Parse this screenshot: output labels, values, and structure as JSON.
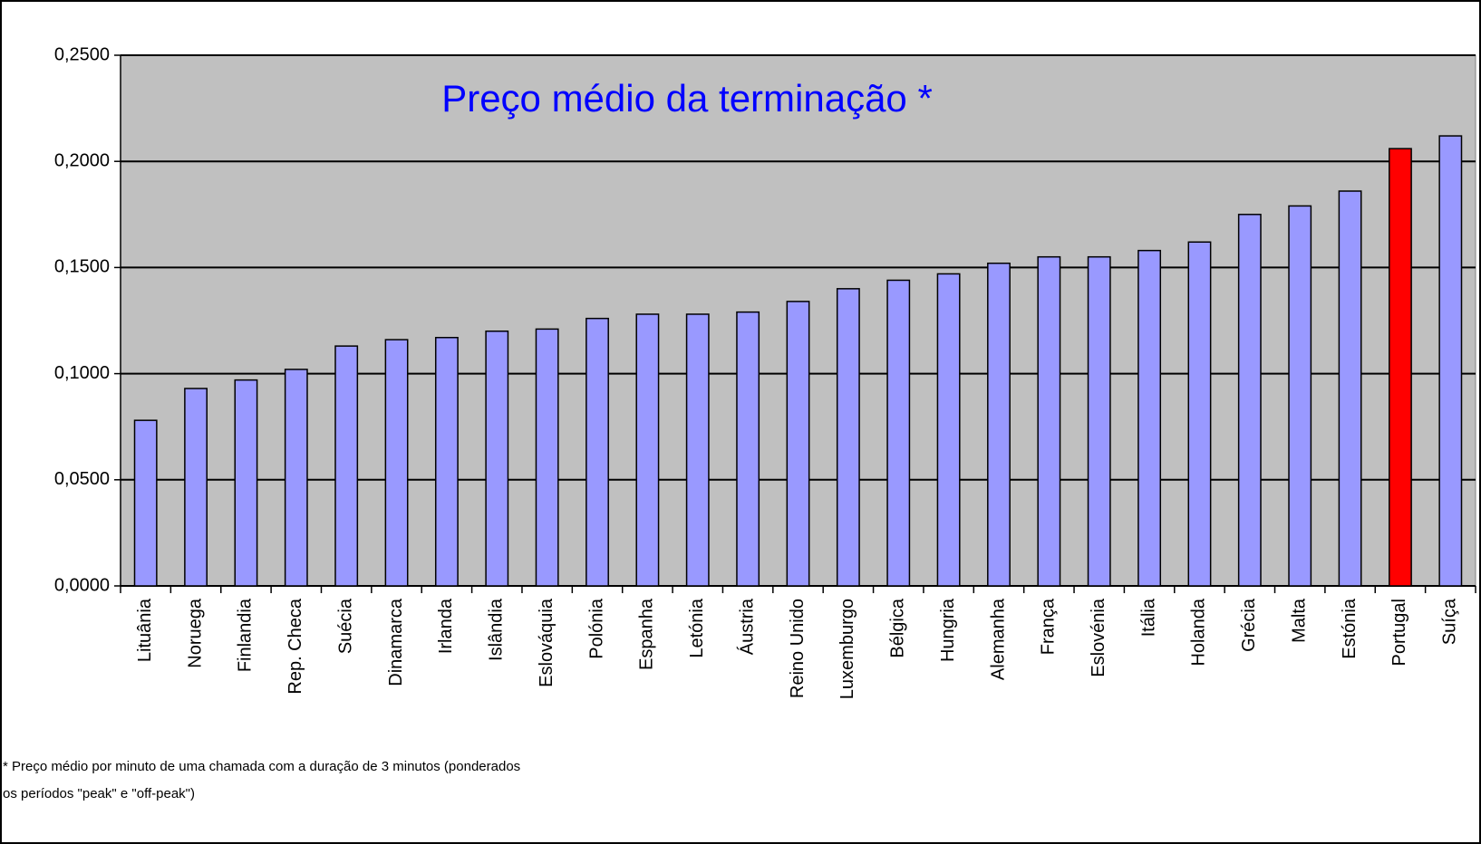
{
  "chart_data": {
    "type": "bar",
    "title": "Preço médio da terminação *",
    "categories": [
      "Lituânia",
      "Noruega",
      "Finlandia",
      "Rep. Checa",
      "Suécia",
      "Dinamarca",
      "Irlanda",
      "Islândia",
      "Eslováquia",
      "Polónia",
      "Espanha",
      "Letónia",
      "Áustria",
      "Reino Unido",
      "Luxemburgo",
      "Bélgica",
      "Hungria",
      "Alemanha",
      "França",
      "Eslovénia",
      "Itália",
      "Holanda",
      "Grécia",
      "Malta",
      "Estónia",
      "Portugal",
      "Suíça"
    ],
    "values": [
      0.078,
      0.093,
      0.097,
      0.102,
      0.113,
      0.116,
      0.117,
      0.12,
      0.121,
      0.126,
      0.128,
      0.128,
      0.129,
      0.134,
      0.14,
      0.144,
      0.147,
      0.152,
      0.155,
      0.155,
      0.158,
      0.162,
      0.175,
      0.179,
      0.186,
      0.206,
      0.212
    ],
    "colors": [
      "#9999ff",
      "#9999ff",
      "#9999ff",
      "#9999ff",
      "#9999ff",
      "#9999ff",
      "#9999ff",
      "#9999ff",
      "#9999ff",
      "#9999ff",
      "#9999ff",
      "#9999ff",
      "#9999ff",
      "#9999ff",
      "#9999ff",
      "#9999ff",
      "#9999ff",
      "#9999ff",
      "#9999ff",
      "#9999ff",
      "#9999ff",
      "#9999ff",
      "#9999ff",
      "#9999ff",
      "#9999ff",
      "#ff0000",
      "#9999ff"
    ],
    "ylim": [
      0,
      0.25
    ],
    "yticks": [
      {
        "value": 0,
        "label": "0,0000"
      },
      {
        "value": 0.05,
        "label": "0,0500"
      },
      {
        "value": 0.1,
        "label": "0,1000"
      },
      {
        "value": 0.15,
        "label": "0,1500"
      },
      {
        "value": 0.2,
        "label": "0,2000"
      },
      {
        "value": 0.25,
        "label": "0,2500"
      }
    ],
    "grid": true,
    "footnote": [
      "* Preço médio por minuto de uma chamada com a duração de 3 minutos (ponderados",
      "os períodos \"peak\" e \"off-peak\")"
    ]
  }
}
